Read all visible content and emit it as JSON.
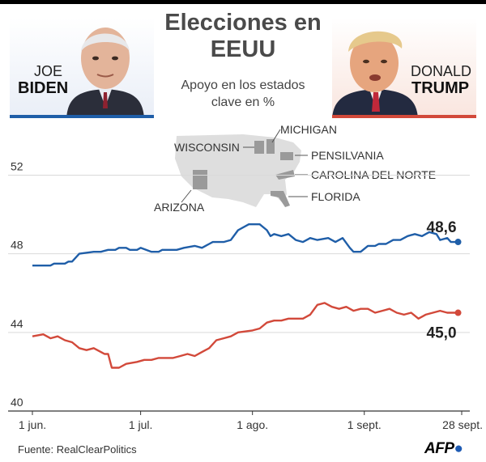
{
  "title": "Elecciones en EEUU",
  "subtitle": "Apoyo en los estados clave en %",
  "candidates": {
    "left": {
      "first": "JOE",
      "last": "BIDEN",
      "color": "#1f5ea8"
    },
    "right": {
      "first": "DONALD",
      "last": "TRUMP",
      "color": "#d2493a"
    }
  },
  "states": [
    "MICHIGAN",
    "WISCONSIN",
    "PENSILVANIA",
    "CAROLINA DEL NORTE",
    "ARIZONA",
    "FLORIDA"
  ],
  "source": "Fuente: RealClearPolitics",
  "agency": "AFP",
  "chart_data": {
    "type": "line",
    "ylim": [
      40,
      53.5
    ],
    "yticks": [
      52,
      48,
      44,
      40
    ],
    "x_range_days": [
      0,
      119
    ],
    "x_labels": [
      {
        "day": 0,
        "label": "1 jun."
      },
      {
        "day": 30,
        "label": "1 jul."
      },
      {
        "day": 61,
        "label": "1 ago."
      },
      {
        "day": 92,
        "label": "1 sept."
      },
      {
        "day": 119,
        "label": "28 sept."
      }
    ],
    "series": [
      {
        "name": "BIDEN",
        "color": "#1f5ea8",
        "end_label": "48,6",
        "points": [
          [
            0,
            47.4
          ],
          [
            5,
            47.4
          ],
          [
            6,
            47.5
          ],
          [
            9,
            47.5
          ],
          [
            10,
            47.6
          ],
          [
            11,
            47.6
          ],
          [
            13,
            48
          ],
          [
            17,
            48.1
          ],
          [
            19,
            48.1
          ],
          [
            21,
            48.2
          ],
          [
            23,
            48.2
          ],
          [
            24,
            48.3
          ],
          [
            26,
            48.3
          ],
          [
            27,
            48.2
          ],
          [
            29,
            48.2
          ],
          [
            30,
            48.3
          ],
          [
            33,
            48.1
          ],
          [
            35,
            48.1
          ],
          [
            36,
            48.2
          ],
          [
            40,
            48.2
          ],
          [
            42,
            48.3
          ],
          [
            45,
            48.4
          ],
          [
            47,
            48.3
          ],
          [
            49,
            48.5
          ],
          [
            50,
            48.6
          ],
          [
            53,
            48.6
          ],
          [
            55,
            48.7
          ],
          [
            57,
            49.2
          ],
          [
            60,
            49.5
          ],
          [
            63,
            49.5
          ],
          [
            65,
            49.2
          ],
          [
            66,
            48.9
          ],
          [
            67,
            49
          ],
          [
            69,
            48.9
          ],
          [
            71,
            49
          ],
          [
            73,
            48.7
          ],
          [
            75,
            48.6
          ],
          [
            77,
            48.8
          ],
          [
            79,
            48.7
          ],
          [
            82,
            48.8
          ],
          [
            84,
            48.6
          ],
          [
            86,
            48.8
          ],
          [
            88,
            48.3
          ],
          [
            89,
            48.1
          ],
          [
            91,
            48.1
          ],
          [
            93,
            48.4
          ],
          [
            95,
            48.4
          ],
          [
            96,
            48.5
          ],
          [
            98,
            48.5
          ],
          [
            100,
            48.7
          ],
          [
            102,
            48.7
          ],
          [
            104,
            48.9
          ],
          [
            106,
            49
          ],
          [
            108,
            48.9
          ],
          [
            109,
            49
          ],
          [
            110,
            49.1
          ],
          [
            112,
            49
          ],
          [
            113,
            48.7
          ],
          [
            115,
            48.8
          ],
          [
            116,
            48.6
          ],
          [
            118,
            48.6
          ]
        ]
      },
      {
        "name": "TRUMP",
        "color": "#d2493a",
        "end_label": "45,0",
        "points": [
          [
            0,
            43.8
          ],
          [
            3,
            43.9
          ],
          [
            5,
            43.7
          ],
          [
            7,
            43.8
          ],
          [
            9,
            43.6
          ],
          [
            11,
            43.5
          ],
          [
            13,
            43.2
          ],
          [
            15,
            43.1
          ],
          [
            17,
            43.2
          ],
          [
            20,
            42.9
          ],
          [
            21,
            42.9
          ],
          [
            22,
            42.2
          ],
          [
            24,
            42.2
          ],
          [
            26,
            42.4
          ],
          [
            29,
            42.5
          ],
          [
            31,
            42.6
          ],
          [
            33,
            42.6
          ],
          [
            35,
            42.7
          ],
          [
            39,
            42.7
          ],
          [
            41,
            42.8
          ],
          [
            43,
            42.9
          ],
          [
            45,
            42.8
          ],
          [
            47,
            43
          ],
          [
            49,
            43.2
          ],
          [
            51,
            43.6
          ],
          [
            53,
            43.7
          ],
          [
            55,
            43.8
          ],
          [
            57,
            44
          ],
          [
            61,
            44.1
          ],
          [
            63,
            44.2
          ],
          [
            65,
            44.5
          ],
          [
            67,
            44.6
          ],
          [
            69,
            44.6
          ],
          [
            71,
            44.7
          ],
          [
            73,
            44.7
          ],
          [
            75,
            44.7
          ],
          [
            77,
            44.9
          ],
          [
            79,
            45.4
          ],
          [
            81,
            45.5
          ],
          [
            83,
            45.3
          ],
          [
            85,
            45.2
          ],
          [
            87,
            45.3
          ],
          [
            89,
            45.1
          ],
          [
            91,
            45.2
          ],
          [
            93,
            45.2
          ],
          [
            95,
            45.0
          ],
          [
            97,
            45.1
          ],
          [
            99,
            45.2
          ],
          [
            101,
            45.0
          ],
          [
            103,
            44.9
          ],
          [
            105,
            45.0
          ],
          [
            107,
            44.7
          ],
          [
            109,
            44.9
          ],
          [
            111,
            45.0
          ],
          [
            113,
            45.1
          ],
          [
            115,
            45.0
          ],
          [
            117,
            45.0
          ],
          [
            118,
            45.0
          ]
        ]
      }
    ]
  }
}
